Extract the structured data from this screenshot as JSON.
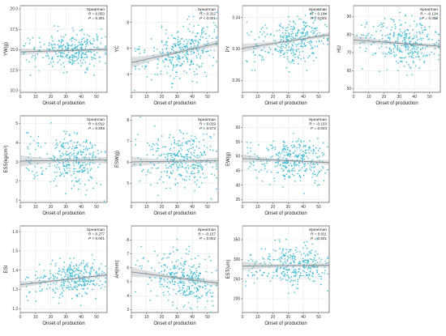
{
  "colors": {
    "point": "#3bb8cf",
    "fit": "#7f8c8f",
    "band": "#9aa7ad"
  },
  "chart_data": [
    {
      "type": "scatter",
      "ylabel": "YW(g)",
      "xlabel": "Onset of production",
      "xlim": [
        0,
        57
      ],
      "xticks": [
        0,
        10,
        20,
        30,
        40,
        50
      ],
      "ylim": [
        9.8,
        20.4
      ],
      "yticks": [
        10.0,
        12.5,
        15.0,
        17.5,
        20.0
      ],
      "ytick_decimals": 1,
      "stats": {
        "method": "Spearman",
        "r_label": "R = 0.053",
        "p_label": "P = 0.301"
      },
      "fit": {
        "y_at_xmin": 14.75,
        "y_at_xmax": 15.05
      },
      "spread": 1.1,
      "seed": 11
    },
    {
      "type": "scatter",
      "ylabel": "YC",
      "xlabel": "Onset of production",
      "xlim": [
        0,
        57
      ],
      "xticks": [
        0,
        10,
        20,
        30,
        40,
        50
      ],
      "ylim": [
        2.6,
        9.3
      ],
      "yticks": [
        4,
        6,
        8
      ],
      "ytick_decimals": 0,
      "stats": {
        "method": "Spearman",
        "r_label": "R = 0.322",
        "p_label": "P < 0.001"
      },
      "fit": {
        "y_at_xmin": 4.9,
        "y_at_xmax": 6.4
      },
      "spread": 1.05,
      "seed": 23
    },
    {
      "type": "scatter",
      "ylabel": "PY",
      "xlabel": "Onset of production",
      "xlim": [
        0,
        57
      ],
      "xticks": [
        0,
        10,
        20,
        30,
        40,
        50
      ],
      "ylim": [
        0.245,
        0.355
      ],
      "yticks": [
        0.26,
        0.3,
        0.34
      ],
      "ytick_decimals": 2,
      "stats": {
        "method": "Spearman",
        "r_label": "R = 0.184",
        "p_label": "P < 0.001"
      },
      "fit": {
        "y_at_xmin": 0.301,
        "y_at_xmax": 0.318
      },
      "spread": 0.014,
      "seed": 37
    },
    {
      "type": "scatter",
      "ylabel": "HU",
      "xlabel": "Onset of production",
      "xlim": [
        0,
        57
      ],
      "xticks": [
        0,
        10,
        20,
        30,
        40,
        50
      ],
      "ylim": [
        48,
        96
      ],
      "yticks": [
        50,
        60,
        70,
        80,
        90
      ],
      "ytick_decimals": 0,
      "stats": {
        "method": "Spearman",
        "r_label": "R = -0.134",
        "p_label": "P = 0.008"
      },
      "fit": {
        "y_at_xmin": 77,
        "y_at_xmax": 73.5
      },
      "spread": 6.5,
      "seed": 41
    },
    {
      "type": "scatter",
      "ylabel": "ESS(kg/cm²)",
      "xlabel": "Onset of production",
      "xlim": [
        0,
        57
      ],
      "xticks": [
        0,
        10,
        20,
        30,
        40,
        50
      ],
      "ylim": [
        0.9,
        5.4
      ],
      "yticks": [
        1,
        2,
        3,
        4,
        5
      ],
      "ytick_decimals": 0,
      "stats": {
        "method": "Spearman",
        "r_label": "R = 0.012",
        "p_label": "P = 0.818"
      },
      "fit": {
        "y_at_xmin": 3.05,
        "y_at_xmax": 3.1
      },
      "spread": 0.75,
      "seed": 53
    },
    {
      "type": "scatter",
      "ylabel": "ESW(g)",
      "xlabel": "Onset of production",
      "xlim": [
        0,
        57
      ],
      "xticks": [
        0,
        10,
        20,
        30,
        40,
        50
      ],
      "ylim": [
        4.1,
        8.2
      ],
      "yticks": [
        5,
        6,
        7,
        8
      ],
      "ytick_decimals": 0,
      "stats": {
        "method": "Spearman",
        "r_label": "R = 0.029",
        "p_label": "P = 0.573"
      },
      "fit": {
        "y_at_xmin": 6.02,
        "y_at_xmax": 6.08
      },
      "spread": 0.62,
      "seed": 67
    },
    {
      "type": "scatter",
      "ylabel": "EW(g)",
      "xlabel": "Onset of production",
      "xlim": [
        0,
        57
      ],
      "xticks": [
        0,
        10,
        20,
        30,
        40,
        50
      ],
      "ylim": [
        34,
        64
      ],
      "yticks": [
        35,
        40,
        45,
        50,
        55,
        60
      ],
      "ytick_decimals": 0,
      "stats": {
        "method": "Spearman",
        "r_label": "R = -0.103",
        "p_label": "P = 0.043"
      },
      "fit": {
        "y_at_xmin": 49.2,
        "y_at_xmax": 47.8
      },
      "spread": 3.6,
      "seed": 79
    },
    {
      "type": "scatter",
      "ylabel": "ESI",
      "xlabel": "Onset of production",
      "xlim": [
        0,
        57
      ],
      "xticks": [
        0,
        10,
        20,
        30,
        40,
        50
      ],
      "ylim": [
        1.18,
        1.63
      ],
      "yticks": [
        1.2,
        1.3,
        1.4,
        1.5,
        1.6
      ],
      "ytick_decimals": 1,
      "stats": {
        "method": "Spearman",
        "r_label": "R = 0.277",
        "p_label": "P < 0.001"
      },
      "fit": {
        "y_at_xmin": 1.325,
        "y_at_xmax": 1.375
      },
      "spread": 0.045,
      "seed": 83
    },
    {
      "type": "scatter",
      "ylabel": "AH(mm)",
      "xlabel": "Onset of production",
      "xlim": [
        0,
        57
      ],
      "xticks": [
        0,
        10,
        20,
        30,
        40,
        50
      ],
      "ylim": [
        2.8,
        9.0
      ],
      "yticks": [
        3,
        4,
        5,
        6,
        7,
        8
      ],
      "ytick_decimals": 0,
      "stats": {
        "method": "Spearman",
        "r_label": "R = -0.157",
        "p_label": "P = 0.002"
      },
      "fit": {
        "y_at_xmin": 5.7,
        "y_at_xmax": 4.9
      },
      "spread": 0.9,
      "seed": 97
    },
    {
      "type": "scatter",
      "ylabel": "EST(um)",
      "xlabel": "Onset of production",
      "xlim": [
        0,
        57
      ],
      "xticks": [
        0,
        10,
        20,
        30,
        40,
        50
      ],
      "ylim": [
        165,
        385
      ],
      "yticks": [
        200,
        250,
        300,
        350
      ],
      "ytick_decimals": 0,
      "stats": {
        "method": "Spearman",
        "r_label": "R = 0.011",
        "p_label": "P = 0.831"
      },
      "fit": {
        "y_at_xmin": 283,
        "y_at_xmax": 285
      },
      "spread": 28,
      "seed": 103
    }
  ]
}
